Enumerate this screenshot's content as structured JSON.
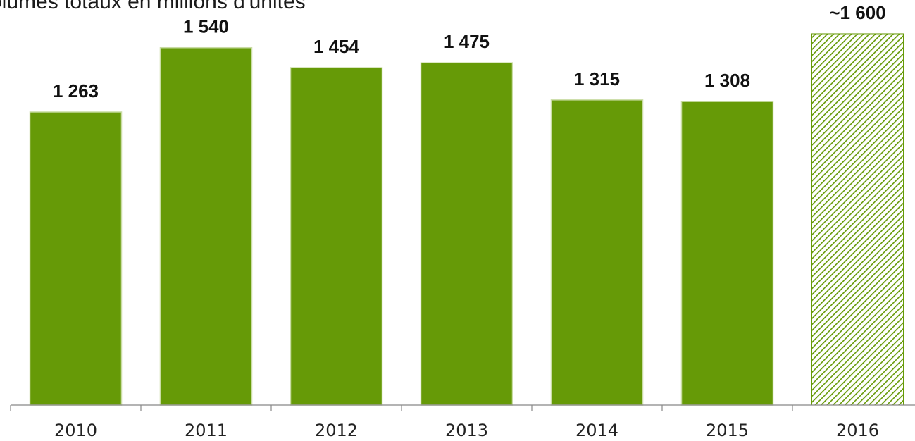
{
  "colors": {
    "bar": "#669a07",
    "bar_border": "#c9dca4",
    "estimate_hatch": "#669a07",
    "axis": "#888888"
  },
  "chart_data": {
    "type": "bar",
    "title": "olumes totaux en millions d'unités",
    "xlabel": "",
    "ylabel": "",
    "categories": [
      "2010",
      "2011",
      "2012",
      "2013",
      "2014",
      "2015",
      "2016"
    ],
    "values": [
      1263,
      1540,
      1454,
      1475,
      1315,
      1308,
      1600
    ],
    "value_labels": [
      "1 263",
      "1 540",
      "1 454",
      "1 475",
      "1 315",
      "1 308",
      "~1 600"
    ],
    "estimated": [
      false,
      false,
      false,
      false,
      false,
      false,
      true
    ],
    "ylim": [
      0,
      1600
    ],
    "grid": false,
    "legend": "none"
  }
}
